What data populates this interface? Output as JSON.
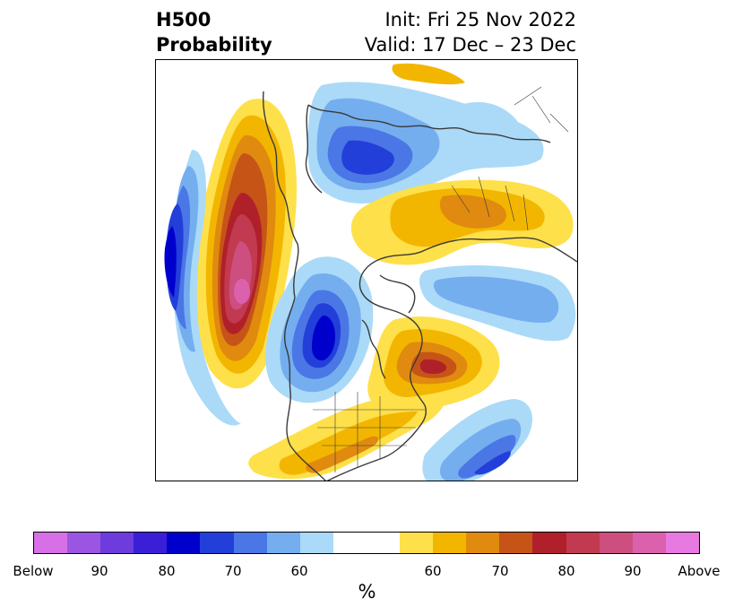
{
  "header": {
    "title_line1": "H500",
    "title_line2": "Probability",
    "init": "Init: Fri 25 Nov 2022",
    "valid": "Valid: 17 Dec – 23 Dec"
  },
  "colorbar": {
    "colors": [
      "#d76fe6",
      "#9b55e3",
      "#6e3bdc",
      "#3a1fd6",
      "#0000cd",
      "#233fd9",
      "#4b76e6",
      "#74aeef",
      "#aadaf7",
      "#ffffff",
      "#ffffff",
      "#fee04a",
      "#f3b600",
      "#e08a10",
      "#c65417",
      "#b0202a",
      "#c23a50",
      "#cd4f80",
      "#db61ad",
      "#e879e0"
    ],
    "tick_labels": [
      "Below",
      "90",
      "80",
      "70",
      "60",
      "60",
      "70",
      "80",
      "90",
      "Above"
    ],
    "unit_label": "%"
  },
  "palette": {
    "below": [
      "#aadaf7",
      "#74aeef",
      "#4b76e6",
      "#233fd9",
      "#0000cd",
      "#3a1fd6"
    ],
    "above": [
      "#fee04a",
      "#f3b600",
      "#e08a10",
      "#c65417",
      "#b0202a",
      "#c23a50",
      "#cd4f80",
      "#db61ad"
    ],
    "coast": "#3a3a3a"
  }
}
